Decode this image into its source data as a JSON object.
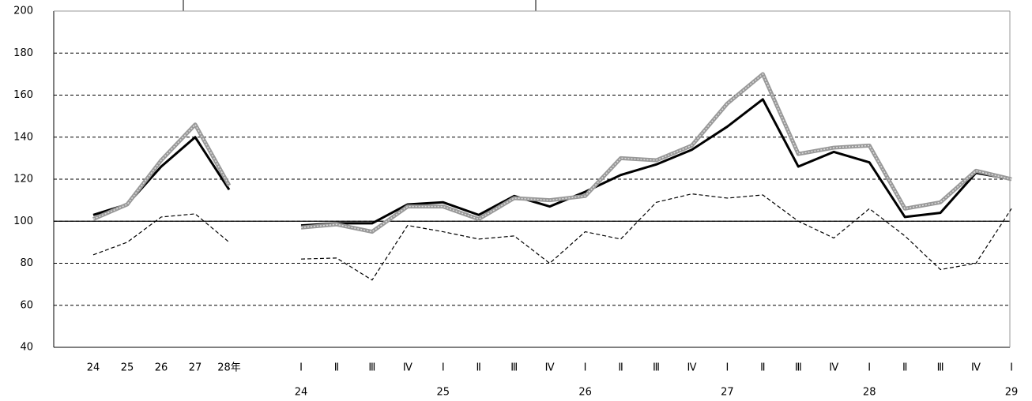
{
  "chart_data": {
    "type": "line",
    "categories": [
      "24",
      "25",
      "26",
      "27",
      "28年",
      null,
      "Ⅰ",
      "Ⅱ",
      "Ⅲ",
      "Ⅳ",
      "Ⅰ",
      "Ⅱ",
      "Ⅲ",
      "Ⅳ",
      "Ⅰ",
      "Ⅱ",
      "Ⅲ",
      "Ⅳ",
      "Ⅰ",
      "Ⅱ",
      "Ⅲ",
      "Ⅳ",
      "Ⅰ",
      "Ⅱ",
      "Ⅲ",
      "Ⅳ",
      "Ⅰ"
    ],
    "category_years": [
      null,
      null,
      null,
      null,
      null,
      null,
      "24",
      null,
      null,
      null,
      "25",
      null,
      null,
      null,
      "26",
      null,
      null,
      null,
      "27",
      null,
      null,
      null,
      "28",
      null,
      null,
      null,
      "29"
    ],
    "series": [
      {
        "color": "#000000",
        "style": "solid",
        "values": [
          103,
          108,
          126,
          140,
          115,
          null,
          98,
          99,
          99,
          108,
          109,
          103,
          112,
          107,
          114,
          122,
          127,
          134,
          145,
          158,
          126,
          133,
          128,
          102,
          104,
          123,
          120
        ]
      },
      {
        "color": "#999999",
        "style": "dotted",
        "values": [
          101,
          108,
          129,
          146,
          117,
          null,
          97,
          98.5,
          95,
          107,
          107,
          101,
          111,
          110,
          112,
          130,
          129,
          136,
          156,
          170,
          132,
          135,
          136,
          106,
          109,
          124,
          120
        ]
      },
      {
        "color": "#000000",
        "style": "dashed",
        "values": [
          84,
          90,
          102,
          103.5,
          90,
          null,
          82,
          82.5,
          72,
          98,
          95,
          91.5,
          93,
          80,
          95,
          91.5,
          109,
          113,
          111,
          112.5,
          100,
          92,
          106,
          93,
          77,
          80,
          106
        ]
      }
    ],
    "ylim": [
      40,
      200
    ],
    "yticks": [
      40,
      60,
      80,
      100,
      120,
      140,
      160,
      180,
      200
    ],
    "baseline": 100,
    "grid": true
  }
}
